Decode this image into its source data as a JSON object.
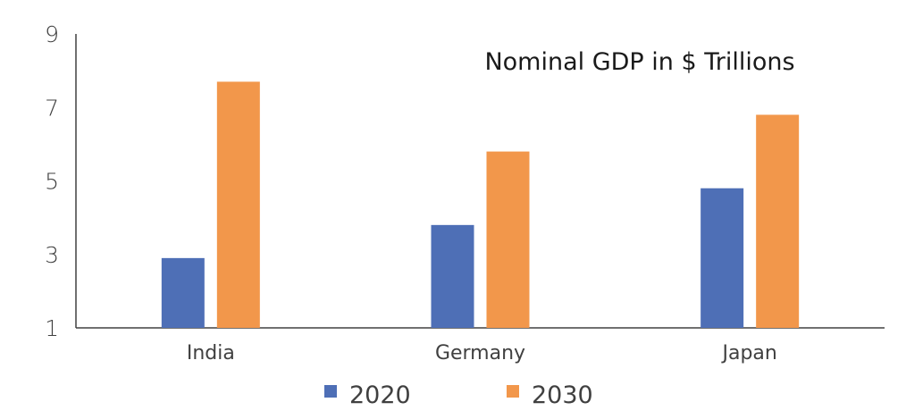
{
  "chart_data": {
    "type": "bar",
    "title": "Nominal GDP in $ Trillions",
    "categories": [
      "India",
      "Germany",
      "Japan"
    ],
    "series": [
      {
        "name": "2020",
        "values": [
          2.9,
          3.8,
          4.8
        ],
        "color": "#4e6fb6"
      },
      {
        "name": "2030",
        "values": [
          7.7,
          5.8,
          6.8
        ],
        "color": "#f2974b"
      }
    ],
    "xlabel": "",
    "ylabel": "",
    "ylim": [
      1,
      9
    ],
    "yticks": [
      "1",
      "3",
      "5",
      "7",
      "9"
    ],
    "grid": false,
    "legend_position": "bottom"
  }
}
